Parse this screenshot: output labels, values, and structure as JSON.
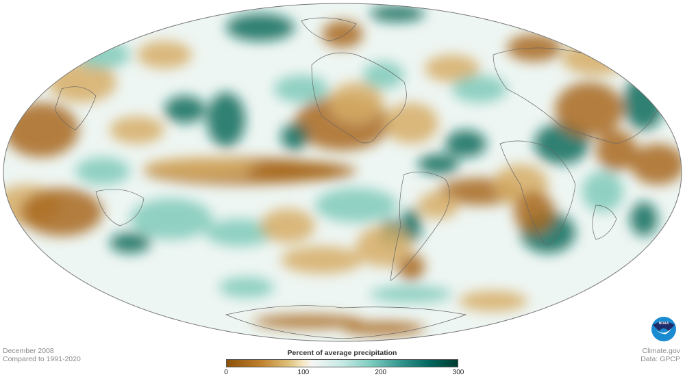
{
  "map": {
    "projection": "Mollweide",
    "date": "December 2008",
    "baseline": "Compared to 1991-2020"
  },
  "legend": {
    "title": "Percent of average precipitation",
    "ticks": [
      "0",
      "100",
      "200",
      "300"
    ],
    "range": [
      0,
      300
    ],
    "colors": [
      "#8c510a",
      "#bf812d",
      "#dfc27d",
      "#f6e8c3",
      "#f5f5f5",
      "#c7eae5",
      "#80cdc1",
      "#35978f",
      "#01665e",
      "#003c30"
    ]
  },
  "credits": {
    "logo": "NOAA",
    "site": "Climate.gov",
    "source": "Data: GPCP"
  }
}
